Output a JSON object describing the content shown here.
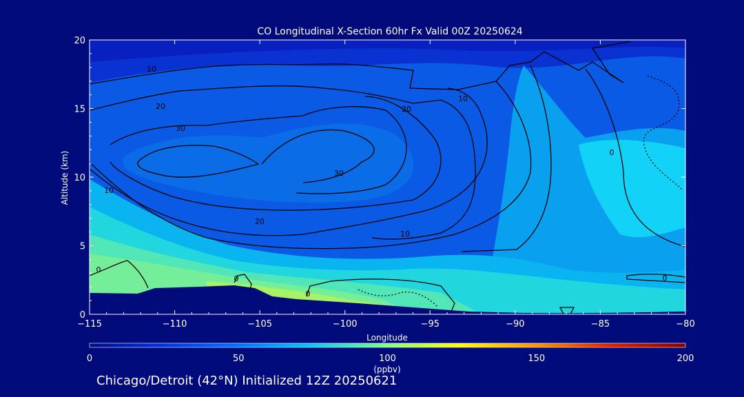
{
  "chart_data": {
    "type": "contour",
    "title": "CO Longitudinal X-Section 60hr  Fx Valid 00Z 20250624",
    "xlabel": "Longitude",
    "ylabel": "Altitude (km)",
    "xlim": [
      -115,
      -80
    ],
    "ylim": [
      0,
      20
    ],
    "x_ticks": [
      "-115",
      "-110",
      "-105",
      "-100",
      "-95",
      "-90",
      "-85",
      "-80"
    ],
    "y_ticks": [
      "0",
      "5",
      "10",
      "15",
      "20"
    ],
    "contour_labels": [
      "10",
      "20",
      "30",
      "10",
      "20",
      "30",
      "10",
      "20",
      "10",
      "0",
      "0",
      "0",
      "0",
      "0"
    ],
    "colorbar": {
      "min": 0,
      "max": 200,
      "ticks": [
        "0",
        "50",
        "100",
        "150",
        "200"
      ],
      "unit": "(ppbv)"
    }
  },
  "footer": "Chicago/Detroit (42°N) Initialized 12Z 20250621"
}
